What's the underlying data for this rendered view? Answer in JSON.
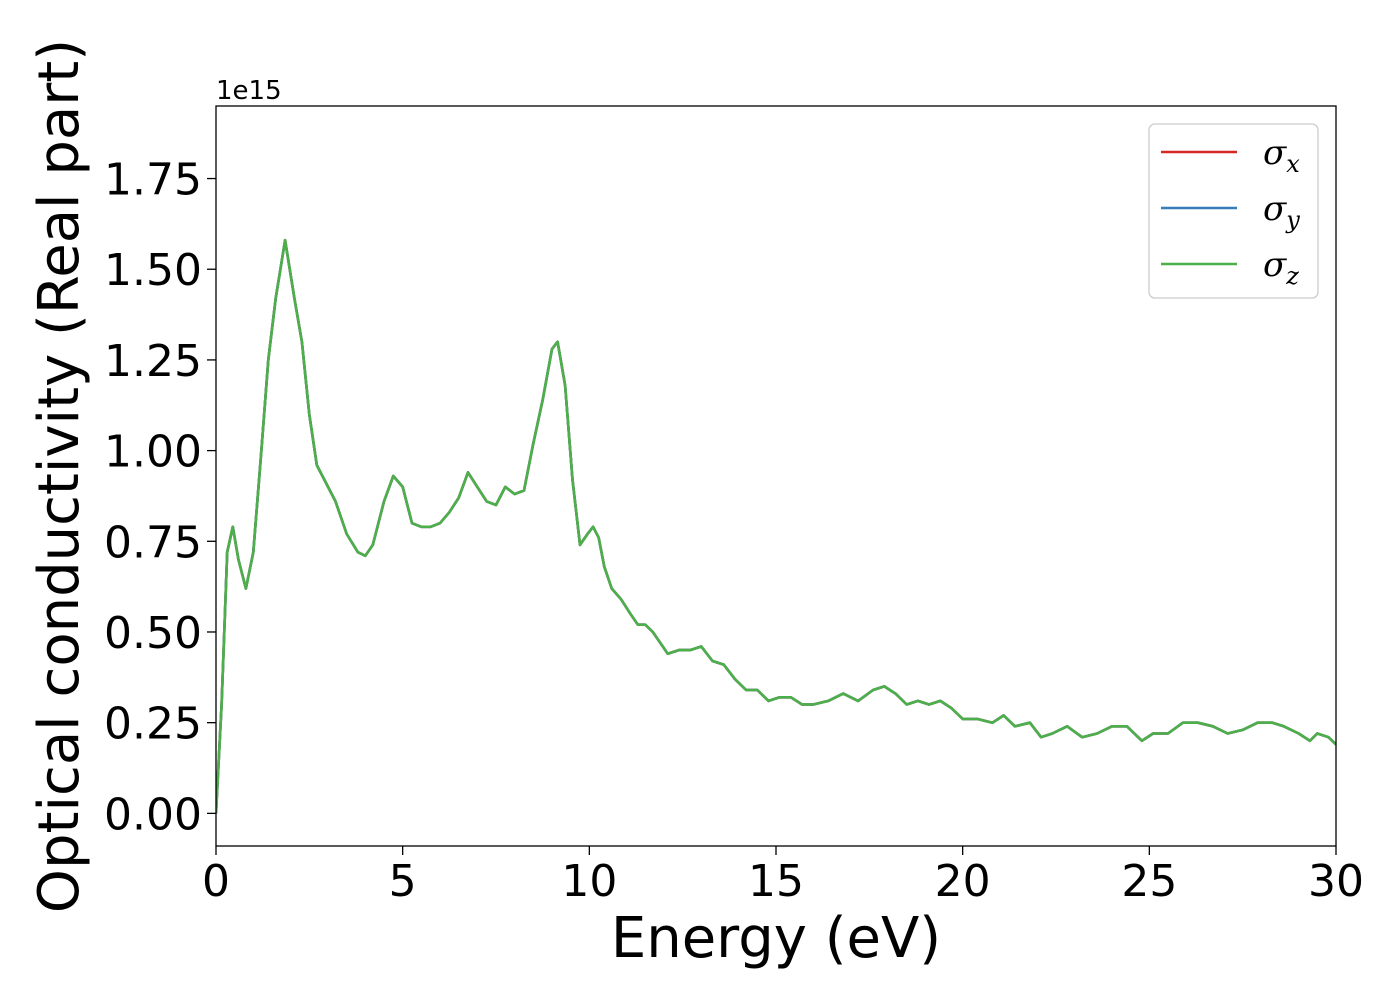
{
  "chart_data": {
    "type": "line",
    "xlabel": "Energy (eV)",
    "ylabel": "Optical conductivity (Real part)",
    "y_offset_label": "1e15",
    "xlim": [
      0,
      30
    ],
    "ylim": [
      -0.09,
      1.95
    ],
    "x_ticks": [
      0,
      5,
      10,
      15,
      20,
      25,
      30
    ],
    "x_tick_labels": [
      "0",
      "5",
      "10",
      "15",
      "20",
      "25",
      "30"
    ],
    "y_ticks": [
      0.0,
      0.25,
      0.5,
      0.75,
      1.0,
      1.25,
      1.5,
      1.75
    ],
    "y_tick_labels": [
      "0.00",
      "0.25",
      "0.50",
      "0.75",
      "1.00",
      "1.25",
      "1.50",
      "1.75"
    ],
    "grid": false,
    "legend_position": "top-right",
    "series": [
      {
        "name": "σx",
        "base": "σ",
        "sub": "x",
        "color": "#d62728",
        "x": [
          0,
          0.15,
          0.3,
          0.45,
          0.6,
          0.8,
          1.0,
          1.2,
          1.4,
          1.6,
          1.85,
          2.1,
          2.3,
          2.5,
          2.7,
          2.9,
          3.2,
          3.5,
          3.8,
          4.0,
          4.2,
          4.5,
          4.75,
          5.0,
          5.25,
          5.5,
          5.75,
          6.0,
          6.25,
          6.5,
          6.75,
          7.0,
          7.25,
          7.5,
          7.75,
          8.0,
          8.25,
          8.5,
          8.75,
          9.0,
          9.15,
          9.35,
          9.55,
          9.75,
          9.95,
          10.1,
          10.25,
          10.4,
          10.6,
          10.85,
          11.1,
          11.3,
          11.5,
          11.7,
          11.9,
          12.1,
          12.4,
          12.7,
          13.0,
          13.3,
          13.6,
          13.9,
          14.2,
          14.5,
          14.8,
          15.1,
          15.4,
          15.7,
          16.0,
          16.4,
          16.8,
          17.2,
          17.6,
          17.9,
          18.2,
          18.5,
          18.8,
          19.1,
          19.4,
          19.7,
          20.0,
          20.4,
          20.8,
          21.1,
          21.4,
          21.8,
          22.1,
          22.4,
          22.8,
          23.2,
          23.6,
          24.0,
          24.4,
          24.8,
          25.1,
          25.5,
          25.9,
          26.3,
          26.7,
          27.1,
          27.5,
          27.9,
          28.3,
          28.6,
          29.0,
          29.3,
          29.5,
          29.8,
          30.0
        ],
        "y": [
          0.0,
          0.3,
          0.72,
          0.79,
          0.7,
          0.62,
          0.72,
          0.98,
          1.25,
          1.42,
          1.58,
          1.42,
          1.3,
          1.1,
          0.96,
          0.92,
          0.86,
          0.77,
          0.72,
          0.71,
          0.74,
          0.86,
          0.93,
          0.9,
          0.8,
          0.79,
          0.79,
          0.8,
          0.83,
          0.87,
          0.94,
          0.9,
          0.86,
          0.85,
          0.9,
          0.88,
          0.89,
          1.02,
          1.14,
          1.28,
          1.3,
          1.18,
          0.92,
          0.74,
          0.77,
          0.79,
          0.76,
          0.68,
          0.62,
          0.59,
          0.55,
          0.52,
          0.52,
          0.5,
          0.47,
          0.44,
          0.45,
          0.45,
          0.46,
          0.42,
          0.41,
          0.37,
          0.34,
          0.34,
          0.31,
          0.32,
          0.32,
          0.3,
          0.3,
          0.31,
          0.33,
          0.31,
          0.34,
          0.35,
          0.33,
          0.3,
          0.31,
          0.3,
          0.31,
          0.29,
          0.26,
          0.26,
          0.25,
          0.27,
          0.24,
          0.25,
          0.21,
          0.22,
          0.24,
          0.21,
          0.22,
          0.24,
          0.24,
          0.2,
          0.22,
          0.22,
          0.25,
          0.25,
          0.24,
          0.22,
          0.23,
          0.25,
          0.25,
          0.24,
          0.22,
          0.2,
          0.22,
          0.21,
          0.19
        ]
      },
      {
        "name": "σy",
        "base": "σ",
        "sub": "y",
        "color": "#377eb8",
        "x": [
          0,
          0.15,
          0.3,
          0.45,
          0.6,
          0.8,
          1.0,
          1.2,
          1.4,
          1.6,
          1.85,
          2.1,
          2.3,
          2.5,
          2.7,
          2.9,
          3.2,
          3.5,
          3.8,
          4.0,
          4.2,
          4.5,
          4.75,
          5.0,
          5.25,
          5.5,
          5.75,
          6.0,
          6.25,
          6.5,
          6.75,
          7.0,
          7.25,
          7.5,
          7.75,
          8.0,
          8.25,
          8.5,
          8.75,
          9.0,
          9.15,
          9.35,
          9.55,
          9.75,
          9.95,
          10.1,
          10.25,
          10.4,
          10.6,
          10.85,
          11.1,
          11.3,
          11.5,
          11.7,
          11.9,
          12.1,
          12.4,
          12.7,
          13.0,
          13.3,
          13.6,
          13.9,
          14.2,
          14.5,
          14.8,
          15.1,
          15.4,
          15.7,
          16.0,
          16.4,
          16.8,
          17.2,
          17.6,
          17.9,
          18.2,
          18.5,
          18.8,
          19.1,
          19.4,
          19.7,
          20.0,
          20.4,
          20.8,
          21.1,
          21.4,
          21.8,
          22.1,
          22.4,
          22.8,
          23.2,
          23.6,
          24.0,
          24.4,
          24.8,
          25.1,
          25.5,
          25.9,
          26.3,
          26.7,
          27.1,
          27.5,
          27.9,
          28.3,
          28.6,
          29.0,
          29.3,
          29.5,
          29.8,
          30.0
        ],
        "y": [
          0.0,
          0.3,
          0.72,
          0.79,
          0.7,
          0.62,
          0.72,
          0.98,
          1.25,
          1.42,
          1.58,
          1.42,
          1.3,
          1.1,
          0.96,
          0.92,
          0.86,
          0.77,
          0.72,
          0.71,
          0.74,
          0.86,
          0.93,
          0.9,
          0.8,
          0.79,
          0.79,
          0.8,
          0.83,
          0.87,
          0.94,
          0.9,
          0.86,
          0.85,
          0.9,
          0.88,
          0.89,
          1.02,
          1.14,
          1.28,
          1.3,
          1.18,
          0.92,
          0.74,
          0.77,
          0.79,
          0.76,
          0.68,
          0.62,
          0.59,
          0.55,
          0.52,
          0.52,
          0.5,
          0.47,
          0.44,
          0.45,
          0.45,
          0.46,
          0.42,
          0.41,
          0.37,
          0.34,
          0.34,
          0.31,
          0.32,
          0.32,
          0.3,
          0.3,
          0.31,
          0.33,
          0.31,
          0.34,
          0.35,
          0.33,
          0.3,
          0.31,
          0.3,
          0.31,
          0.29,
          0.26,
          0.26,
          0.25,
          0.27,
          0.24,
          0.25,
          0.21,
          0.22,
          0.24,
          0.21,
          0.22,
          0.24,
          0.24,
          0.2,
          0.22,
          0.22,
          0.25,
          0.25,
          0.24,
          0.22,
          0.23,
          0.25,
          0.25,
          0.24,
          0.22,
          0.2,
          0.22,
          0.21,
          0.19
        ]
      },
      {
        "name": "σz",
        "base": "σ",
        "sub": "z",
        "color": "#4daf4a",
        "x": [
          0,
          0.15,
          0.3,
          0.45,
          0.6,
          0.8,
          1.0,
          1.2,
          1.4,
          1.6,
          1.85,
          2.1,
          2.3,
          2.5,
          2.7,
          2.9,
          3.2,
          3.5,
          3.8,
          4.0,
          4.2,
          4.5,
          4.75,
          5.0,
          5.25,
          5.5,
          5.75,
          6.0,
          6.25,
          6.5,
          6.75,
          7.0,
          7.25,
          7.5,
          7.75,
          8.0,
          8.25,
          8.5,
          8.75,
          9.0,
          9.15,
          9.35,
          9.55,
          9.75,
          9.95,
          10.1,
          10.25,
          10.4,
          10.6,
          10.85,
          11.1,
          11.3,
          11.5,
          11.7,
          11.9,
          12.1,
          12.4,
          12.7,
          13.0,
          13.3,
          13.6,
          13.9,
          14.2,
          14.5,
          14.8,
          15.1,
          15.4,
          15.7,
          16.0,
          16.4,
          16.8,
          17.2,
          17.6,
          17.9,
          18.2,
          18.5,
          18.8,
          19.1,
          19.4,
          19.7,
          20.0,
          20.4,
          20.8,
          21.1,
          21.4,
          21.8,
          22.1,
          22.4,
          22.8,
          23.2,
          23.6,
          24.0,
          24.4,
          24.8,
          25.1,
          25.5,
          25.9,
          26.3,
          26.7,
          27.1,
          27.5,
          27.9,
          28.3,
          28.6,
          29.0,
          29.3,
          29.5,
          29.8,
          30.0
        ],
        "y": [
          0.0,
          0.3,
          0.72,
          0.79,
          0.7,
          0.62,
          0.72,
          0.98,
          1.25,
          1.42,
          1.58,
          1.42,
          1.3,
          1.1,
          0.96,
          0.92,
          0.86,
          0.77,
          0.72,
          0.71,
          0.74,
          0.86,
          0.93,
          0.9,
          0.8,
          0.79,
          0.79,
          0.8,
          0.83,
          0.87,
          0.94,
          0.9,
          0.86,
          0.85,
          0.9,
          0.88,
          0.89,
          1.02,
          1.14,
          1.28,
          1.3,
          1.18,
          0.92,
          0.74,
          0.77,
          0.79,
          0.76,
          0.68,
          0.62,
          0.59,
          0.55,
          0.52,
          0.52,
          0.5,
          0.47,
          0.44,
          0.45,
          0.45,
          0.46,
          0.42,
          0.41,
          0.37,
          0.34,
          0.34,
          0.31,
          0.32,
          0.32,
          0.3,
          0.3,
          0.31,
          0.33,
          0.31,
          0.34,
          0.35,
          0.33,
          0.3,
          0.31,
          0.3,
          0.31,
          0.29,
          0.26,
          0.26,
          0.25,
          0.27,
          0.24,
          0.25,
          0.21,
          0.22,
          0.24,
          0.21,
          0.22,
          0.24,
          0.24,
          0.2,
          0.22,
          0.22,
          0.25,
          0.25,
          0.24,
          0.22,
          0.23,
          0.25,
          0.25,
          0.24,
          0.22,
          0.2,
          0.22,
          0.21,
          0.19
        ]
      }
    ]
  }
}
